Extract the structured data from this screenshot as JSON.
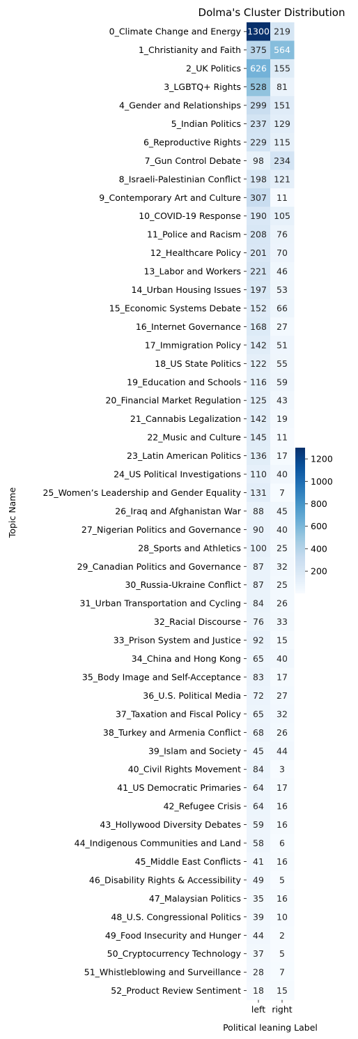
{
  "chart_data": {
    "type": "heatmap",
    "title": "Dolma's Cluster Distribution",
    "xlabel": "Political leaning Label",
    "ylabel": "Topic Name",
    "columns": [
      "left",
      "right"
    ],
    "rows": [
      "0_Climate Change and Energy",
      "1_Christianity and Faith",
      "2_UK Politics",
      "3_LGBTQ+ Rights",
      "4_Gender and Relationships",
      "5_Indian Politics",
      "6_Reproductive Rights",
      "7_Gun Control Debate",
      "8_Israeli-Palestinian Conflict",
      "9_Contemporary Art and Culture",
      "10_COVID-19 Response",
      "11_Police and Racism",
      "12_Healthcare Policy",
      "13_Labor and Workers",
      "14_Urban Housing Issues",
      "15_Economic Systems Debate",
      "16_Internet Governance",
      "17_Immigration Policy",
      "18_US State Politics",
      "19_Education and Schools",
      "20_Financial Market Regulation",
      "21_Cannabis Legalization",
      "22_Music and Culture",
      "23_Latin American Politics",
      "24_US Political Investigations",
      "25_Women’s Leadership and Gender Equality",
      "26_Iraq and Afghanistan War",
      "27_Nigerian Politics and Governance",
      "28_Sports and Athletics",
      "29_Canadian Politics and Governance",
      "30_Russia-Ukraine Conflict",
      "31_Urban Transportation and Cycling",
      "32_Racial Discourse",
      "33_Prison System and Justice",
      "34_China and Hong Kong",
      "35_Body Image and Self-Acceptance",
      "36_U.S. Political Media",
      "37_Taxation and Fiscal Policy",
      "38_Turkey and Armenia Conflict",
      "39_Islam and Society",
      "40_Civil Rights Movement",
      "41_US Democratic Primaries",
      "42_Refugee Crisis",
      "43_Hollywood Diversity Debates",
      "44_Indigenous Communities and Land",
      "45_Middle East Conflicts",
      "46_Disability Rights & Accessibility",
      "47_Malaysian Politics",
      "48_U.S. Congressional Politics",
      "49_Food Insecurity and Hunger",
      "50_Cryptocurrency Technology",
      "51_Whistleblowing and Surveillance",
      "52_Product Review Sentiment"
    ],
    "values": [
      [
        1300,
        219
      ],
      [
        375,
        564
      ],
      [
        626,
        155
      ],
      [
        528,
        81
      ],
      [
        299,
        151
      ],
      [
        237,
        129
      ],
      [
        229,
        115
      ],
      [
        98,
        234
      ],
      [
        198,
        121
      ],
      [
        307,
        11
      ],
      [
        190,
        105
      ],
      [
        208,
        76
      ],
      [
        201,
        70
      ],
      [
        221,
        46
      ],
      [
        197,
        53
      ],
      [
        152,
        66
      ],
      [
        168,
        27
      ],
      [
        142,
        51
      ],
      [
        122,
        55
      ],
      [
        116,
        59
      ],
      [
        125,
        43
      ],
      [
        142,
        19
      ],
      [
        145,
        11
      ],
      [
        136,
        17
      ],
      [
        110,
        40
      ],
      [
        131,
        7
      ],
      [
        88,
        45
      ],
      [
        90,
        40
      ],
      [
        100,
        25
      ],
      [
        87,
        32
      ],
      [
        87,
        25
      ],
      [
        84,
        26
      ],
      [
        76,
        33
      ],
      [
        92,
        15
      ],
      [
        65,
        40
      ],
      [
        83,
        17
      ],
      [
        72,
        27
      ],
      [
        65,
        32
      ],
      [
        68,
        26
      ],
      [
        45,
        44
      ],
      [
        84,
        3
      ],
      [
        64,
        17
      ],
      [
        64,
        16
      ],
      [
        59,
        16
      ],
      [
        58,
        6
      ],
      [
        41,
        16
      ],
      [
        49,
        5
      ],
      [
        35,
        16
      ],
      [
        39,
        10
      ],
      [
        44,
        2
      ],
      [
        37,
        5
      ],
      [
        28,
        7
      ],
      [
        18,
        15
      ]
    ],
    "colormap": "Blues",
    "colorbar": {
      "range": [
        2,
        1300
      ],
      "ticks": [
        200,
        400,
        600,
        800,
        1000,
        1200
      ],
      "tick_labels": [
        "200",
        "400",
        "600",
        "800",
        "1000",
        "1200"
      ]
    },
    "legend_placement": "right",
    "grid": false
  }
}
